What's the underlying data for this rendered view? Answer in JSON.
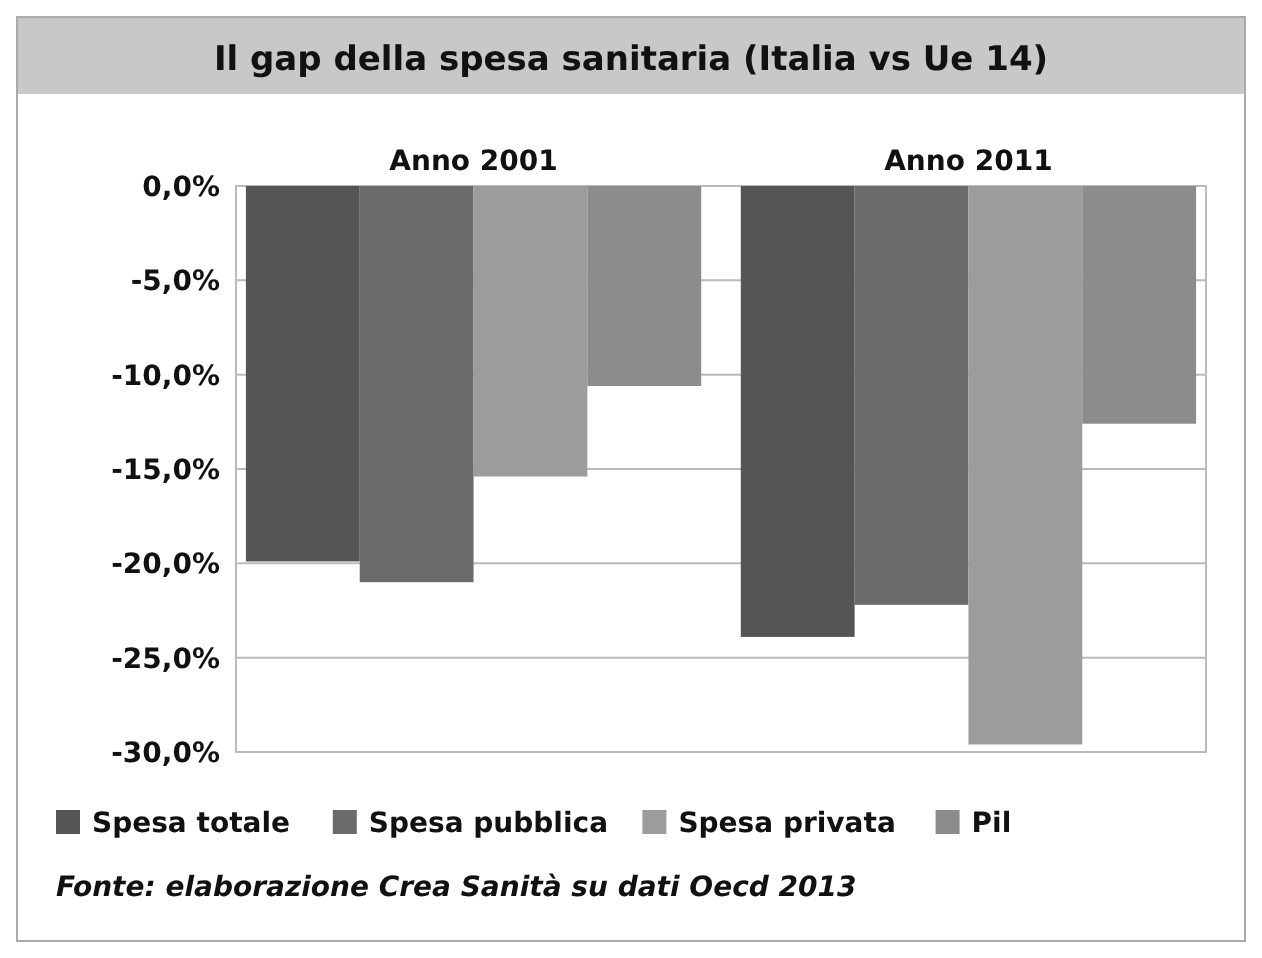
{
  "chart_data": {
    "type": "bar",
    "title": "Il gap della spesa sanitaria (Italia vs Ue 14)",
    "categories": [
      "Anno 2001",
      "Anno 2011"
    ],
    "series": [
      {
        "name": "Spesa totale",
        "color": "#555555",
        "values": [
          -19.9,
          -23.9
        ]
      },
      {
        "name": "Spesa pubblica",
        "color": "#6b6b6b",
        "values": [
          -21.0,
          -22.2
        ]
      },
      {
        "name": "Spesa privata",
        "color": "#9c9c9c",
        "values": [
          -15.4,
          -29.6
        ]
      },
      {
        "name": "Pil",
        "color": "#8c8c8c",
        "values": [
          -10.6,
          -12.6
        ]
      }
    ],
    "ylim": [
      -30,
      0
    ],
    "yticks": [
      {
        "value": 0,
        "label": "0,0%"
      },
      {
        "value": -5,
        "label": "-5,0%"
      },
      {
        "value": -10,
        "label": "-10,0%"
      },
      {
        "value": -15,
        "label": "-15,0%"
      },
      {
        "value": -20,
        "label": "-20,0%"
      },
      {
        "value": -25,
        "label": "-25,0%"
      },
      {
        "value": -30,
        "label": "-30,0%"
      }
    ],
    "grid": "y",
    "legend": "bottom",
    "annotations": [
      "Fonte: elaborazione Crea Sanità su dati Oecd 2013"
    ]
  }
}
